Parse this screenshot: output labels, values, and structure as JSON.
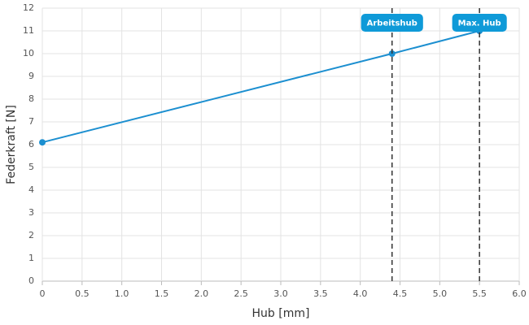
{
  "chart_data": {
    "type": "line",
    "x_label": "Hub [mm]",
    "y_label": "Federkraft [N]",
    "x": [
      0,
      4.4,
      5.5
    ],
    "values": [
      6.1,
      10,
      11
    ],
    "color": "#1c8fd0",
    "xlim": [
      0,
      6
    ],
    "xticks": [
      0,
      0.5,
      {
        "value": 1,
        "label": "1.0"
      },
      1.5,
      {
        "value": 2,
        "label": "2.0"
      },
      2.5,
      {
        "value": 3,
        "label": "3.0"
      },
      3.5,
      {
        "value": 4,
        "label": "4.0"
      },
      4.5,
      {
        "value": 5,
        "label": "5.0"
      },
      5.5,
      {
        "value": 6,
        "label": "6.0"
      }
    ],
    "ylim": [
      0,
      12
    ],
    "yticks": [
      0,
      1,
      2,
      3,
      4,
      5,
      6,
      7,
      8,
      9,
      10,
      11,
      12
    ],
    "grid": true,
    "annotations": [
      {
        "x": 4.4,
        "label": "Arbeitshub"
      },
      {
        "x": 5.5,
        "label": "Max. Hub"
      }
    ],
    "annotation_color": "#0f9ad8"
  }
}
